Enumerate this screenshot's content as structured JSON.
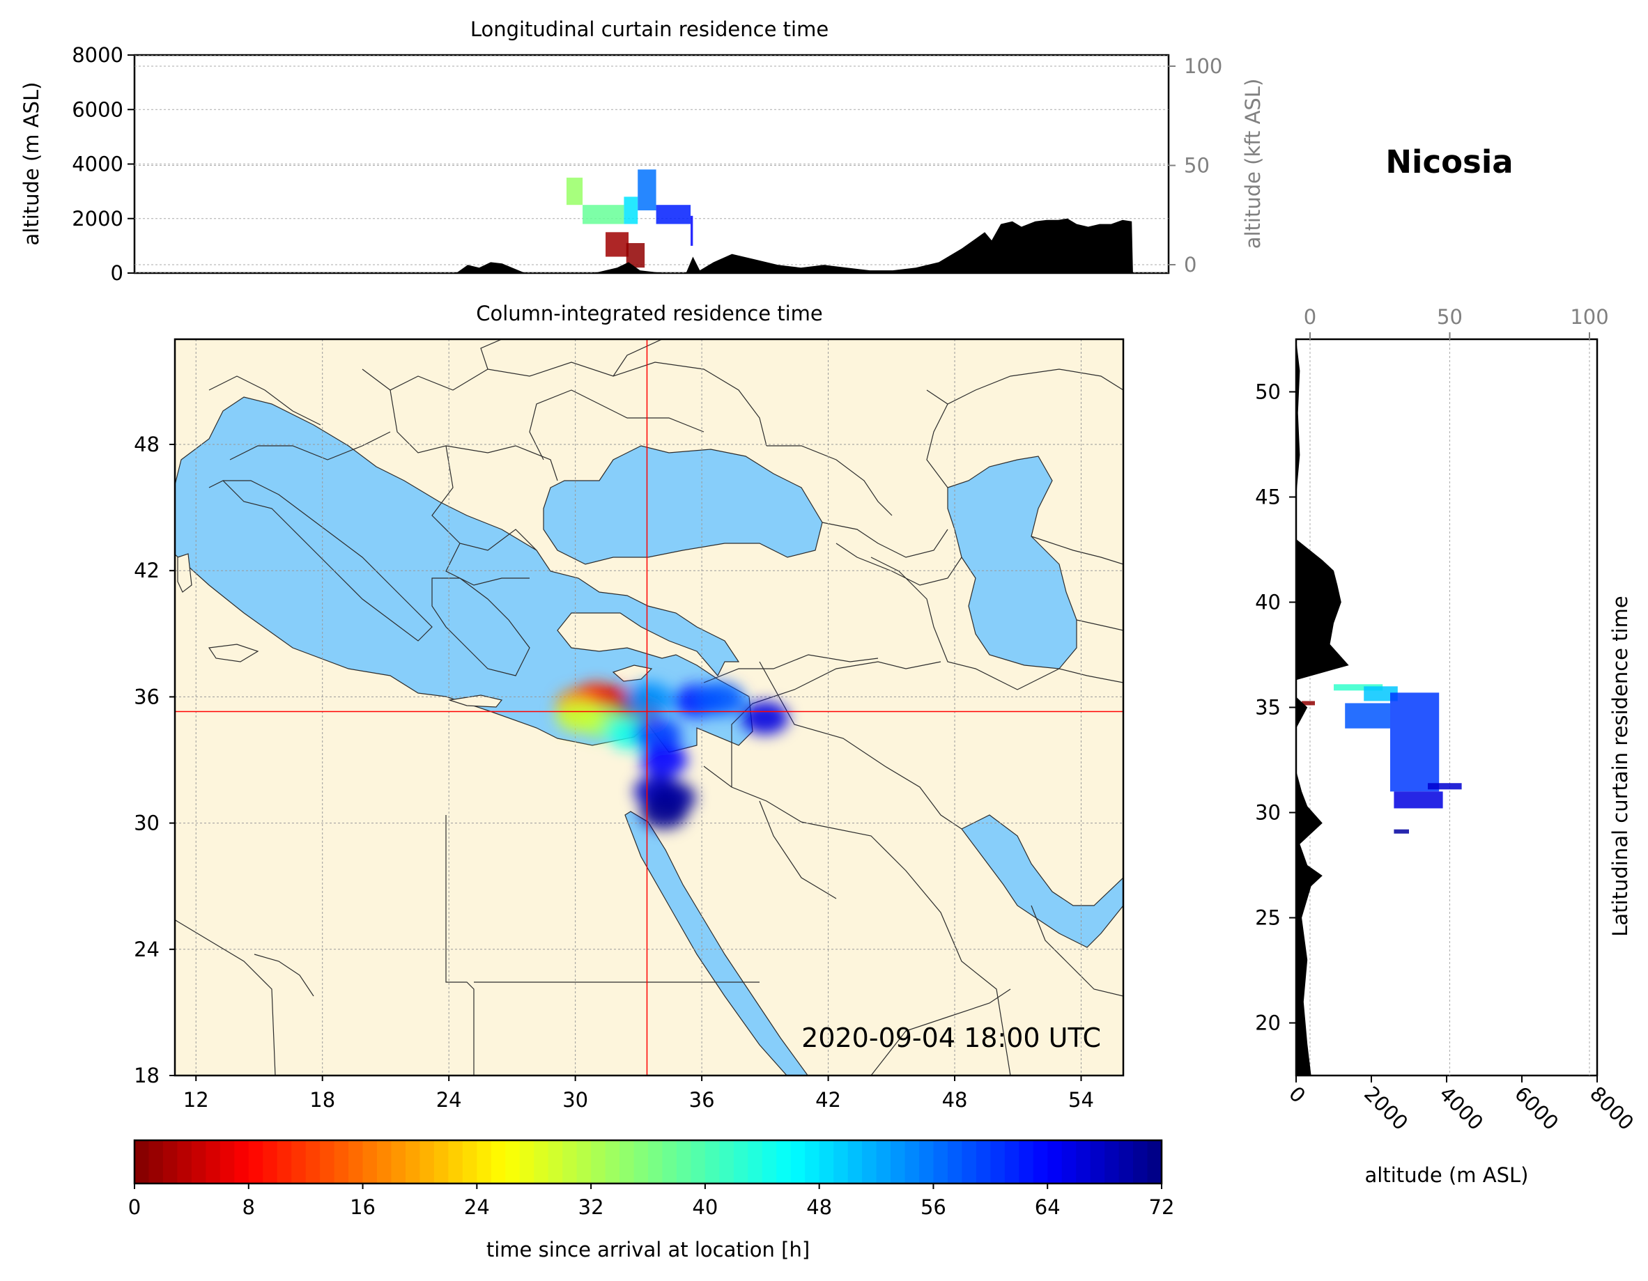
{
  "site": "Nicosia",
  "timestamp": "2020-09-04 18:00 UTC",
  "colors": {
    "land": "#fdf5dc",
    "sea": "#87cefa",
    "terrain": "#000000",
    "crosshair": "#ff0000",
    "secondary_axis": "#808080"
  },
  "chart_data": [
    {
      "type": "area",
      "title": "Longitudinal curtain residence time",
      "xlabel": "",
      "ylabel": "altitude (m ASL)",
      "y2label": "altitude (kft ASL)",
      "ylim": [
        0,
        8000
      ],
      "y_ticks": [
        0,
        2000,
        4000,
        6000,
        8000
      ],
      "y2_ticks": [
        0,
        50,
        100
      ],
      "grid": true,
      "terrain": {
        "x": [
          24.0,
          25.0,
          25.5,
          26.0,
          26.5,
          27.0,
          28.0,
          31.0,
          32.0,
          32.5,
          33.0,
          34.0,
          35.0,
          35.3,
          35.6,
          36.2,
          37.0,
          38.0,
          39.0,
          40.0,
          41.0,
          42.0,
          43.0,
          44.0,
          45.0,
          46.0,
          47.0,
          48.0,
          48.3,
          48.7,
          49.2,
          49.6,
          50.2,
          50.7,
          51.2,
          51.6,
          52.0,
          52.5,
          53.0,
          53.5,
          54.0,
          54.4,
          54.45
        ],
        "y": [
          0,
          0,
          300,
          200,
          400,
          350,
          0,
          0,
          200,
          400,
          100,
          0,
          0,
          600,
          100,
          400,
          700,
          500,
          300,
          200,
          300,
          200,
          100,
          100,
          200,
          400,
          900,
          1500,
          1200,
          1800,
          1900,
          1700,
          1900,
          1950,
          1950,
          2000,
          1800,
          1700,
          1800,
          1800,
          1950,
          1900,
          0
        ]
      },
      "residence": [
        {
          "x": [
            29.8,
            30.5
          ],
          "z": [
            2500,
            3500
          ],
          "t": 34
        },
        {
          "x": [
            30.5,
            32.3
          ],
          "z": [
            1800,
            2500
          ],
          "t": 38
        },
        {
          "x": [
            32.3,
            32.9
          ],
          "z": [
            1800,
            2800
          ],
          "t": 48
        },
        {
          "x": [
            32.9,
            33.7
          ],
          "z": [
            2300,
            3800
          ],
          "t": 56
        },
        {
          "x": [
            33.7,
            35.2
          ],
          "z": [
            1800,
            2500
          ],
          "t": 62
        },
        {
          "x": [
            35.2,
            35.3
          ],
          "z": [
            1000,
            2100
          ],
          "t": 64
        },
        {
          "x": [
            31.5,
            32.5
          ],
          "z": [
            600,
            1500
          ],
          "t": 2
        },
        {
          "x": [
            32.4,
            33.2
          ],
          "z": [
            200,
            1100
          ],
          "t": 1
        }
      ]
    },
    {
      "type": "heatmap",
      "title": "Column-integrated residence time",
      "xlabel": "",
      "ylabel": "",
      "xlim": [
        11.0,
        56.0
      ],
      "ylim": [
        18.0,
        53.0
      ],
      "x_ticks": [
        12,
        18,
        24,
        30,
        36,
        42,
        48,
        54
      ],
      "y_ticks": [
        18,
        24,
        30,
        36,
        42,
        48
      ],
      "grid": true,
      "site_marker": {
        "lon": 33.4,
        "lat": 35.3
      },
      "plume": [
        {
          "lon": 30.2,
          "lat": 35.6,
          "t": 16
        },
        {
          "lon": 31.0,
          "lat": 35.9,
          "t": 11
        },
        {
          "lon": 32.0,
          "lat": 35.7,
          "t": 6
        },
        {
          "lon": 32.9,
          "lat": 35.4,
          "t": 1
        },
        {
          "lon": 31.3,
          "lat": 34.8,
          "t": 35
        },
        {
          "lon": 30.2,
          "lat": 35.1,
          "t": 30
        },
        {
          "lon": 32.6,
          "lat": 34.3,
          "t": 44
        },
        {
          "lon": 33.5,
          "lat": 35.9,
          "t": 54
        },
        {
          "lon": 33.9,
          "lat": 34.2,
          "t": 60
        },
        {
          "lon": 34.2,
          "lat": 33.0,
          "t": 64
        },
        {
          "lon": 33.9,
          "lat": 31.5,
          "t": 68
        },
        {
          "lon": 34.6,
          "lat": 31.2,
          "t": 70
        },
        {
          "lon": 34.2,
          "lat": 30.5,
          "t": 71
        },
        {
          "lon": 35.8,
          "lat": 35.8,
          "t": 62
        },
        {
          "lon": 36.9,
          "lat": 35.9,
          "t": 58
        },
        {
          "lon": 39.0,
          "lat": 35.0,
          "t": 66
        }
      ]
    },
    {
      "type": "area",
      "title": "Latitudinal curtain residence time",
      "xlabel": "altitude (m ASL)",
      "x2label": "",
      "ylabel": "",
      "xlim": [
        0,
        8000
      ],
      "x_ticks": [
        0,
        2000,
        4000,
        6000,
        8000
      ],
      "x2_ticks": [
        0,
        50,
        100
      ],
      "ylim": [
        17.5,
        52.5
      ],
      "y_ticks": [
        20,
        25,
        30,
        35,
        40,
        45,
        50
      ],
      "grid": true,
      "terrain": {
        "lat": [
          17.5,
          19.0,
          21.0,
          23.0,
          25.0,
          26.5,
          27.0,
          27.5,
          28.5,
          29.5,
          30.3,
          31.0,
          32.0,
          34.0,
          35.0,
          35.5,
          36.3,
          37.0,
          38.0,
          39.0,
          40.0,
          40.8,
          41.5,
          42.0,
          43.0,
          45.0,
          47.0,
          49.0,
          51.0,
          52.5
        ],
        "alt": [
          400,
          300,
          200,
          300,
          150,
          400,
          700,
          300,
          100,
          700,
          300,
          150,
          0,
          0,
          300,
          0,
          0,
          1400,
          900,
          1000,
          1200,
          1100,
          1000,
          700,
          0,
          0,
          100,
          50,
          100,
          0
        ]
      },
      "residence": [
        {
          "lat": [
            35.8,
            36.1
          ],
          "z": [
            1000,
            2300
          ],
          "t": 42
        },
        {
          "lat": [
            35.3,
            36.0
          ],
          "z": [
            1800,
            2700
          ],
          "t": 50
        },
        {
          "lat": [
            34.0,
            35.2
          ],
          "z": [
            1300,
            2500
          ],
          "t": 58
        },
        {
          "lat": [
            31.0,
            35.7
          ],
          "z": [
            2500,
            3800
          ],
          "t": 60
        },
        {
          "lat": [
            30.2,
            31.0
          ],
          "z": [
            2600,
            3900
          ],
          "t": 66
        },
        {
          "lat": [
            31.1,
            31.4
          ],
          "z": [
            3500,
            4400
          ],
          "t": 67
        },
        {
          "lat": [
            29.0,
            29.2
          ],
          "z": [
            2600,
            3000
          ],
          "t": 70
        },
        {
          "lat": [
            35.1,
            35.3
          ],
          "z": [
            150,
            500
          ],
          "t": 1
        }
      ]
    },
    {
      "type": "heatmap",
      "title": "",
      "xlabel": "time since arrival at location [h]",
      "ylabel": "",
      "xlim": [
        0,
        72
      ],
      "x_ticks": [
        0,
        8,
        16,
        24,
        32,
        40,
        48,
        56,
        64,
        72
      ],
      "colormap": "jet_r"
    }
  ]
}
